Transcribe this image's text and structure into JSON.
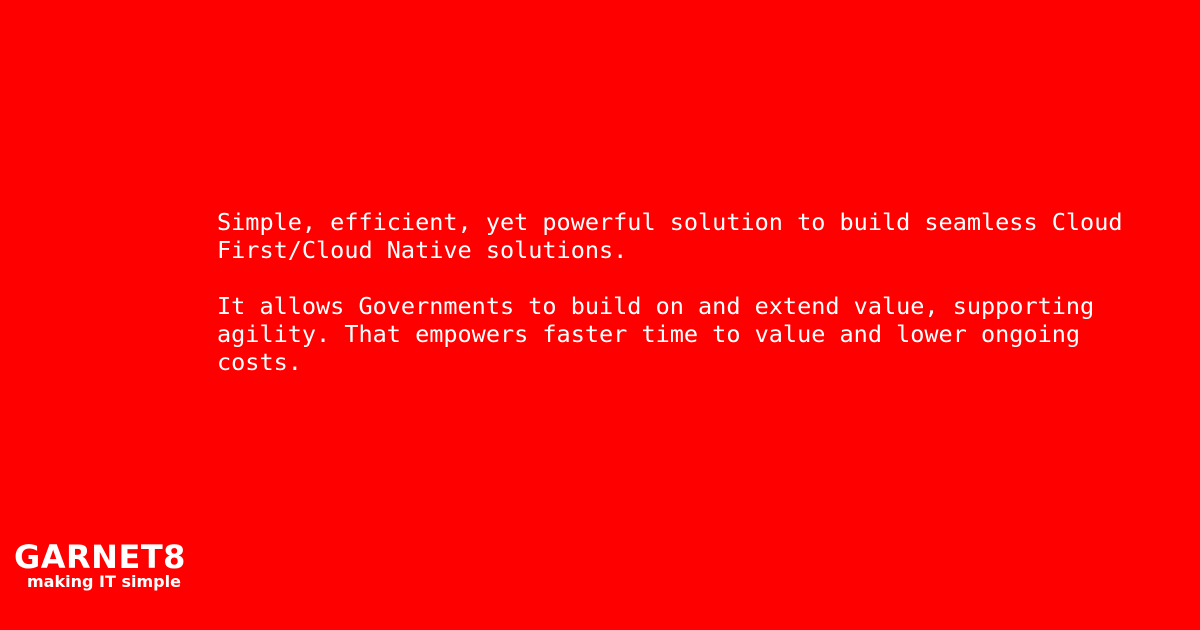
{
  "main": {
    "paragraph_1": "Simple, efficient, yet powerful solution to build seamless Cloud First/Cloud Native solutions.",
    "paragraph_2": "It allows Governments to build on and extend value, supporting agility. That empowers faster time to value and lower ongoing costs."
  },
  "logo": {
    "wordmark": "GARNET8",
    "tagline": "making IT simple"
  },
  "colors": {
    "background": "#ff0000",
    "text": "#ffffff"
  }
}
